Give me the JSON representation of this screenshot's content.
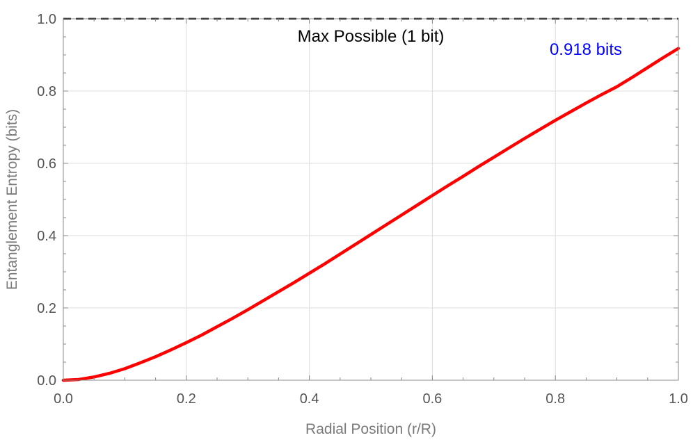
{
  "chart_data": {
    "type": "line",
    "title": "",
    "xlabel": "Radial Position (r/R)",
    "ylabel": "Entanglement Entropy (bits)",
    "xlim": [
      0,
      1
    ],
    "ylim": [
      0,
      1
    ],
    "xticks": [
      "0.0",
      "0.2",
      "0.4",
      "0.6",
      "0.8",
      "1.0"
    ],
    "yticks": [
      "0.0",
      "0.2",
      "0.4",
      "0.6",
      "0.8",
      "1.0"
    ],
    "grid": true,
    "series": [
      {
        "color": "#ff0000",
        "x": [
          0,
          0.025,
          0.05,
          0.075,
          0.1,
          0.125,
          0.15,
          0.175,
          0.2,
          0.225,
          0.25,
          0.275,
          0.3,
          0.325,
          0.35,
          0.375,
          0.4,
          0.425,
          0.45,
          0.475,
          0.5,
          0.525,
          0.55,
          0.575,
          0.6,
          0.625,
          0.65,
          0.675,
          0.7,
          0.725,
          0.75,
          0.775,
          0.8,
          0.825,
          0.85,
          0.875,
          0.9,
          0.925,
          0.95,
          0.975,
          1.0
        ],
        "y": [
          0,
          0.002,
          0.009,
          0.019,
          0.032,
          0.048,
          0.065,
          0.084,
          0.104,
          0.125,
          0.148,
          0.171,
          0.195,
          0.22,
          0.245,
          0.27,
          0.296,
          0.322,
          0.349,
          0.376,
          0.403,
          0.43,
          0.457,
          0.484,
          0.511,
          0.538,
          0.564,
          0.591,
          0.617,
          0.643,
          0.669,
          0.694,
          0.719,
          0.743,
          0.767,
          0.79,
          0.812,
          0.838,
          0.865,
          0.892,
          0.918
        ]
      }
    ],
    "reference_line": {
      "y": 1.0,
      "color": "#000000",
      "style": "dashed",
      "label": "Max Possible (1 bit)"
    },
    "end_label": {
      "text": "0.918 bits",
      "color": "#0000ff"
    }
  }
}
